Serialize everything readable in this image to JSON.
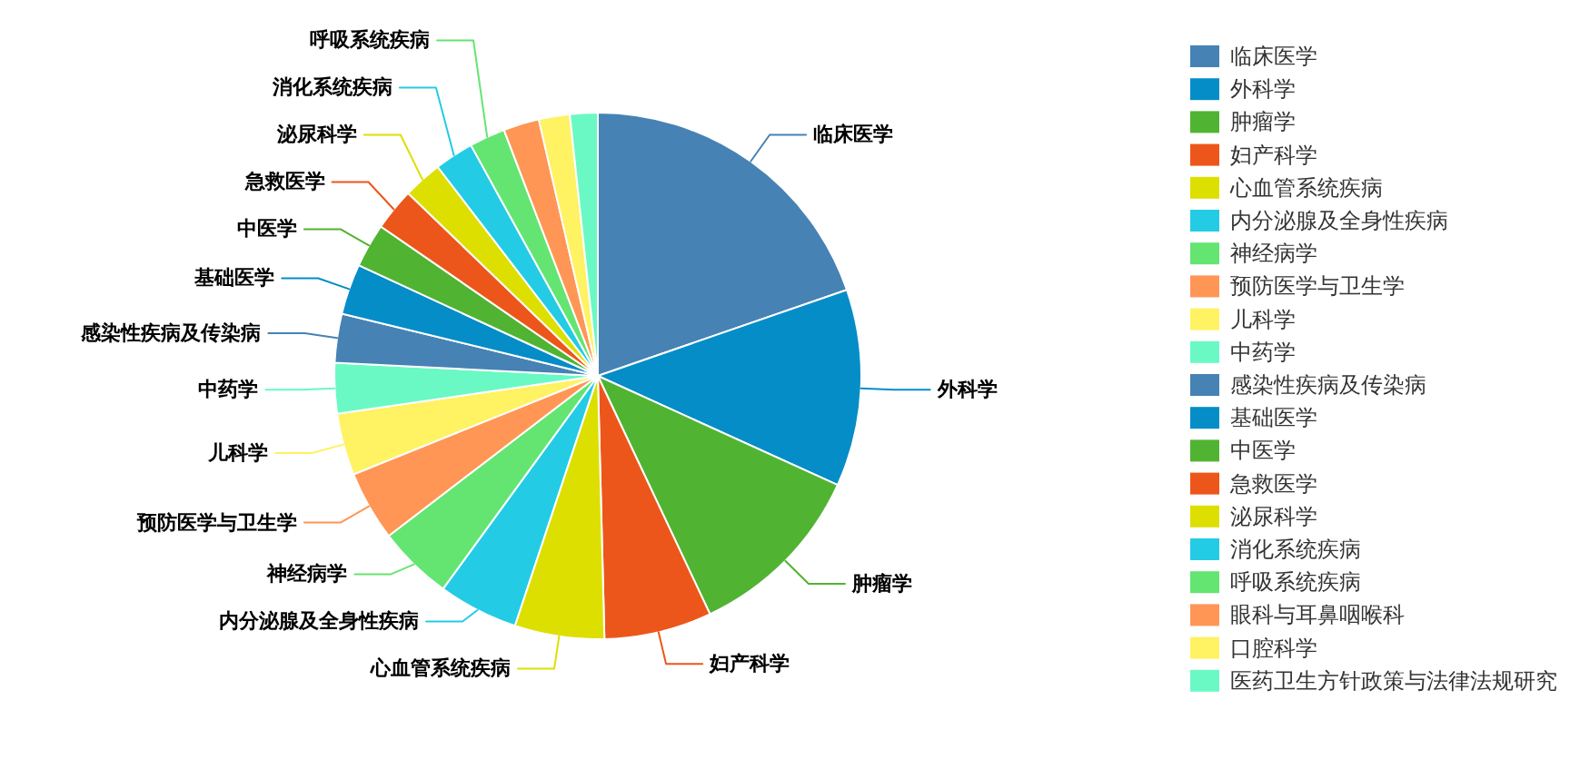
{
  "chart_data": {
    "type": "pie",
    "categories": [
      "临床医学",
      "外科学",
      "肿瘤学",
      "妇产科学",
      "心血管系统疾病",
      "内分泌腺及全身性疾病",
      "神经病学",
      "预防医学与卫生学",
      "儿科学",
      "中药学",
      "感染性疾病及传染病",
      "基础医学",
      "中医学",
      "急救医学",
      "泌尿科学",
      "消化系统疾病",
      "呼吸系统疾病",
      "眼科与耳鼻咽喉科",
      "口腔科学",
      "医药卫生方针政策与法律法规研究"
    ],
    "values": [
      19.7,
      12.1,
      11.2,
      6.6,
      5.5,
      4.9,
      4.6,
      4.3,
      3.8,
      3.1,
      3.0,
      3.1,
      2.7,
      2.6,
      2.4,
      2.4,
      2.2,
      2.2,
      1.9,
      1.7
    ],
    "colors": [
      "#4682b4",
      "#058dc7",
      "#50b432",
      "#ed561b",
      "#dddf00",
      "#24cbe5",
      "#64e572",
      "#ff9655",
      "#fff263",
      "#6af9c4",
      "#4682b4",
      "#058dc7",
      "#50b432",
      "#ed561b",
      "#dddf00",
      "#24cbe5",
      "#64e572",
      "#ff9655",
      "#fff263",
      "#6af9c4"
    ],
    "legend": "right"
  }
}
